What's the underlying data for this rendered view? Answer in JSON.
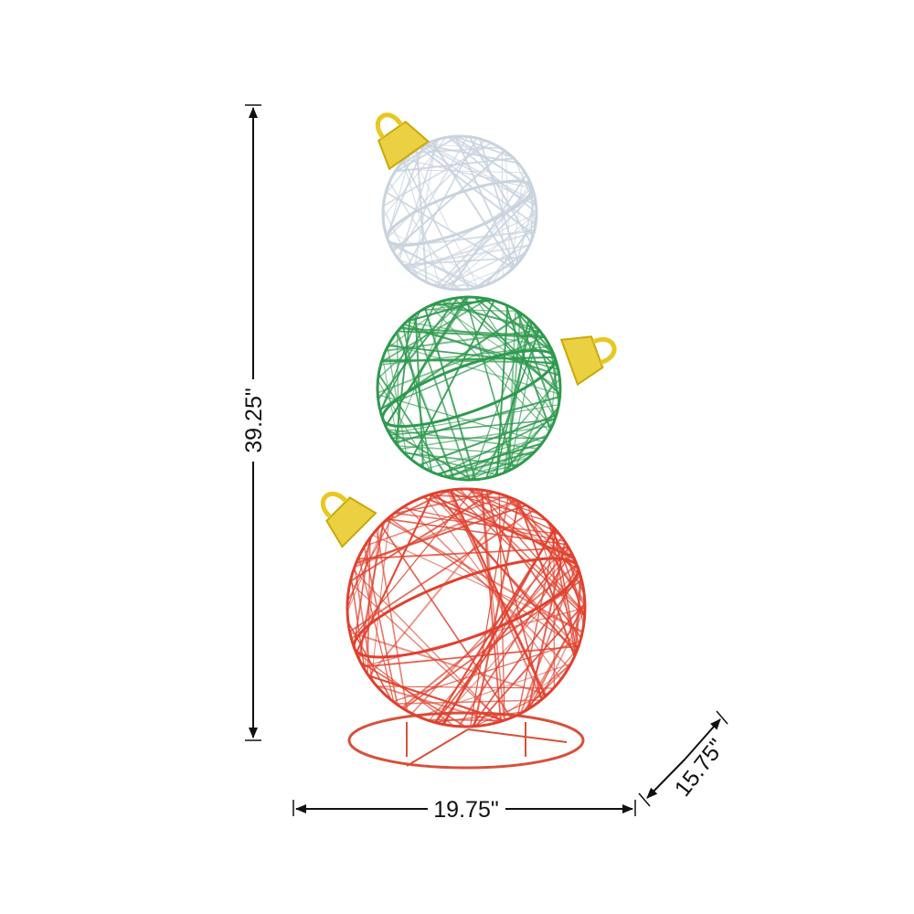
{
  "dimensions": {
    "height": "39.25\"",
    "width": "19.75\"",
    "depth": "15.75\""
  },
  "product": {
    "ornaments": [
      {
        "color": "white",
        "hex": "#e8eef4",
        "cap_side": "left"
      },
      {
        "color": "green",
        "hex": "#2e9a4e",
        "cap_side": "right"
      },
      {
        "color": "red",
        "hex": "#e0412e",
        "cap_side": "left"
      }
    ],
    "cap_color": "#e8c820",
    "base_color": "#d9503a"
  }
}
